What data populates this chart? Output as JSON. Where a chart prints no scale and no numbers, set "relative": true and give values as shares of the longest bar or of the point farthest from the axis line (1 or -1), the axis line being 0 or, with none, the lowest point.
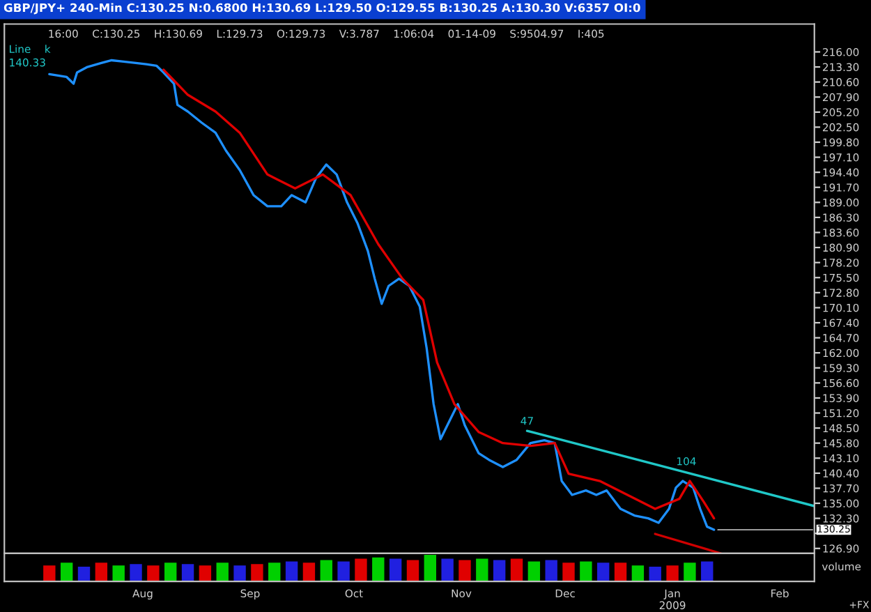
{
  "chart_data": [
    {
      "type": "line",
      "title": "GBP/JPY+ 240-Min C:130.25 N:0.6800 H:130.69 L:129.50 O:129.55 B:130.25 A:130.30 V:6357 OI:0",
      "annotations": [
        "16:00    C:130.25    H:130.69    L:129.73    O:129.73    V:3.787    1:06:04    01-14-09    S:9504.97    I:405",
        "Line    k",
        "140.33",
        "+FX",
        {
          "text": "47",
          "x": "2008-11-20",
          "y": 148.0
        },
        {
          "text": "104",
          "x": "2009-01-05",
          "y": 140.75
        },
        {
          "text": "130.25",
          "x": "2009-01-13",
          "y": 130.25
        }
      ],
      "xlim": [
        "2008-06-22",
        "2009-02-11"
      ],
      "ylim": [
        126.0,
        221.0
      ],
      "yticks": [
        {
          "value": 216.0,
          "label": "216.00"
        },
        {
          "value": 213.3,
          "label": "213.30"
        },
        {
          "value": 210.6,
          "label": "210.60"
        },
        {
          "value": 207.9,
          "label": "207.90"
        },
        {
          "value": 205.2,
          "label": "205.20"
        },
        {
          "value": 202.5,
          "label": "202.50"
        },
        {
          "value": 199.8,
          "label": "199.80"
        },
        {
          "value": 197.1,
          "label": "197.10"
        },
        {
          "value": 194.4,
          "label": "194.40"
        },
        {
          "value": 191.7,
          "label": "191.70"
        },
        {
          "value": 189.0,
          "label": "189.00"
        },
        {
          "value": 186.3,
          "label": "186.30"
        },
        {
          "value": 183.6,
          "label": "183.60"
        },
        {
          "value": 180.9,
          "label": "180.90"
        },
        {
          "value": 178.2,
          "label": "178.20"
        },
        {
          "value": 175.5,
          "label": "175.50"
        },
        {
          "value": 172.8,
          "label": "172.80"
        },
        {
          "value": 170.1,
          "label": "170.10"
        },
        {
          "value": 167.4,
          "label": "167.40"
        },
        {
          "value": 164.7,
          "label": "164.70"
        },
        {
          "value": 162.0,
          "label": "162.00"
        },
        {
          "value": 159.3,
          "label": "159.30"
        },
        {
          "value": 156.6,
          "label": "156.60"
        },
        {
          "value": 153.9,
          "label": "153.90"
        },
        {
          "value": 151.2,
          "label": "151.20"
        },
        {
          "value": 148.5,
          "label": "148.50"
        },
        {
          "value": 145.8,
          "label": "145.80"
        },
        {
          "value": 143.1,
          "label": "143.10"
        },
        {
          "value": 140.4,
          "label": "140.40"
        },
        {
          "value": 137.7,
          "label": "137.70"
        },
        {
          "value": 135.0,
          "label": "135.00"
        },
        {
          "value": 132.3,
          "label": "132.30"
        },
        {
          "value": 129.6,
          "label": null
        },
        {
          "value": 126.9,
          "label": "126.90"
        }
      ],
      "tick_labels": "y",
      "series": [
        {
          "color": "#1e90ff",
          "x": [
            "2008-07-05",
            "2008-07-10",
            "2008-07-12",
            "2008-07-13",
            "2008-07-16",
            "2008-07-20",
            "2008-07-23",
            "2008-07-26",
            "2008-07-30",
            "2008-08-02",
            "2008-08-05",
            "2008-08-07",
            "2008-08-10",
            "2008-08-11",
            "2008-08-14",
            "2008-08-18",
            "2008-08-22",
            "2008-08-25",
            "2008-08-29",
            "2008-09-02",
            "2008-09-06",
            "2008-09-10",
            "2008-09-13",
            "2008-09-17",
            "2008-09-20",
            "2008-09-23",
            "2008-09-26",
            "2008-09-29",
            "2008-10-02",
            "2008-10-05",
            "2008-10-07",
            "2008-10-09",
            "2008-10-11",
            "2008-10-14",
            "2008-10-17",
            "2008-10-20",
            "2008-10-22",
            "2008-10-24",
            "2008-10-26",
            "2008-10-29",
            "2008-10-31",
            "2008-11-02",
            "2008-11-06",
            "2008-11-09",
            "2008-11-13",
            "2008-11-17",
            "2008-11-21",
            "2008-11-25",
            "2008-11-28",
            "2008-11-30",
            "2008-12-03",
            "2008-12-07",
            "2008-12-10",
            "2008-12-13",
            "2008-12-17",
            "2008-12-21",
            "2008-12-25",
            "2008-12-28",
            "2008-12-31",
            "2009-01-02",
            "2009-01-04",
            "2009-01-07",
            "2009-01-09",
            "2009-01-11",
            "2009-01-13"
          ],
          "values": [
            212.0,
            211.5,
            210.3,
            212.3,
            213.3,
            214.0,
            214.5,
            214.3,
            214.0,
            213.8,
            213.5,
            212.3,
            210.3,
            206.5,
            205.3,
            203.3,
            201.5,
            198.3,
            194.8,
            190.3,
            188.3,
            188.3,
            190.3,
            189.0,
            193.3,
            195.8,
            194.0,
            189.0,
            185.3,
            180.3,
            175.3,
            170.8,
            174.0,
            175.3,
            174.0,
            170.3,
            162.8,
            152.8,
            146.5,
            150.3,
            152.8,
            149.0,
            144.0,
            142.8,
            141.5,
            142.8,
            145.8,
            146.3,
            145.8,
            139.0,
            136.5,
            137.3,
            136.5,
            137.3,
            134.0,
            132.8,
            132.3,
            131.5,
            134.0,
            137.8,
            139.0,
            137.8,
            134.0,
            130.8,
            130.25
          ]
        },
        {
          "color": "#e00000",
          "x": [
            "2008-08-07",
            "2008-08-14",
            "2008-08-22",
            "2008-08-29",
            "2008-09-06",
            "2008-09-14",
            "2008-09-22",
            "2008-09-30",
            "2008-10-08",
            "2008-10-15",
            "2008-10-21",
            "2008-10-25",
            "2008-10-30",
            "2008-11-06",
            "2008-11-13",
            "2008-11-21",
            "2008-11-28",
            "2008-12-02",
            "2008-12-11",
            "2008-12-19",
            "2008-12-27",
            "2009-01-03",
            "2009-01-06",
            "2009-01-10",
            "2009-01-13"
          ],
          "values": [
            212.8,
            208.3,
            205.3,
            201.5,
            194.0,
            191.5,
            194.0,
            190.3,
            181.5,
            175.3,
            171.5,
            160.3,
            152.8,
            147.8,
            145.8,
            145.3,
            145.8,
            140.3,
            139.0,
            136.5,
            134.0,
            135.8,
            139.0,
            135.3,
            132.3
          ]
        },
        {
          "color": "#20c8c8",
          "x": [
            "2008-11-20",
            "2009-02-11"
          ],
          "values": [
            148.0,
            134.5
          ]
        },
        {
          "color": "#d00000",
          "x": [
            "2008-12-27",
            "2009-01-15"
          ],
          "values": [
            129.5,
            126.0
          ]
        }
      ]
    },
    {
      "type": "bar",
      "relative": true,
      "ylabel": "volume",
      "tick_labels": "x",
      "xlim": [
        "2008-06-22",
        "2009-02-11"
      ],
      "xticks": [
        {
          "value": "2008-08-01",
          "label": "Aug"
        },
        {
          "value": "2008-09-01",
          "label": "Sep"
        },
        {
          "value": "2008-10-01",
          "label": "Oct"
        },
        {
          "value": "2008-11-01",
          "label": "Nov"
        },
        {
          "value": "2008-12-01",
          "label": "Dec"
        },
        {
          "value": "2009-01-01",
          "label": "Jan\n2009"
        },
        {
          "value": "2009-02-01",
          "label": "Feb"
        }
      ],
      "x": [
        "2008-07-05",
        "2008-07-10",
        "2008-07-15",
        "2008-07-20",
        "2008-07-25",
        "2008-07-30",
        "2008-08-04",
        "2008-08-09",
        "2008-08-14",
        "2008-08-19",
        "2008-08-24",
        "2008-08-29",
        "2008-09-03",
        "2008-09-08",
        "2008-09-13",
        "2008-09-18",
        "2008-09-23",
        "2008-09-28",
        "2008-10-03",
        "2008-10-08",
        "2008-10-13",
        "2008-10-18",
        "2008-10-23",
        "2008-10-28",
        "2008-11-02",
        "2008-11-07",
        "2008-11-12",
        "2008-11-17",
        "2008-11-22",
        "2008-11-27",
        "2008-12-02",
        "2008-12-07",
        "2008-12-12",
        "2008-12-17",
        "2008-12-22",
        "2008-12-27",
        "2009-01-01",
        "2009-01-06",
        "2009-01-11"
      ],
      "values": [
        0.6,
        0.7,
        0.55,
        0.7,
        0.6,
        0.65,
        0.6,
        0.7,
        0.65,
        0.6,
        0.7,
        0.6,
        0.65,
        0.7,
        0.75,
        0.7,
        0.8,
        0.75,
        0.85,
        0.9,
        0.85,
        0.8,
        1.0,
        0.85,
        0.8,
        0.85,
        0.8,
        0.85,
        0.75,
        0.8,
        0.7,
        0.75,
        0.7,
        0.7,
        0.6,
        0.55,
        0.6,
        0.7,
        0.75
      ],
      "colors": [
        "#e00000",
        "#00d000",
        "#2020e0",
        "#e00000",
        "#00d000",
        "#2020e0",
        "#e00000",
        "#00d000",
        "#2020e0",
        "#e00000",
        "#00d000",
        "#2020e0",
        "#e00000",
        "#00d000",
        "#2020e0",
        "#e00000",
        "#00d000",
        "#2020e0",
        "#e00000",
        "#00d000",
        "#2020e0",
        "#e00000",
        "#00d000",
        "#2020e0",
        "#e00000",
        "#00d000",
        "#2020e0",
        "#e00000",
        "#00d000",
        "#2020e0",
        "#e00000",
        "#00d000",
        "#2020e0",
        "#e00000",
        "#00d000",
        "#2020e0",
        "#e00000",
        "#00d000",
        "#2020e0"
      ]
    }
  ]
}
